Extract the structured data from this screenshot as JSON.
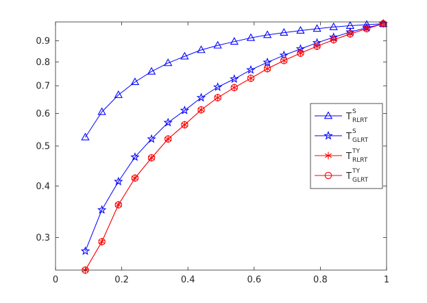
{
  "chart_data": {
    "type": "line",
    "title": "",
    "xlabel": "",
    "ylabel": "",
    "xlim": [
      0,
      1
    ],
    "ylim": [
      0.25,
      1.0
    ],
    "yscale": "log",
    "grid": false,
    "legend_position": "right-middle",
    "xticks": [
      "0",
      "0.2",
      "0.4",
      "0.6",
      "0.8",
      "1"
    ],
    "xtick_values": [
      0,
      0.2,
      0.4,
      0.6,
      0.8,
      1.0
    ],
    "yticks": [
      "0.3",
      "0.4",
      "0.5",
      "0.6",
      "0.7",
      "0.8",
      "0.9"
    ],
    "ytick_values": [
      0.3,
      0.4,
      0.5,
      0.6,
      0.7,
      0.8,
      0.9
    ],
    "x": [
      0.09,
      0.14,
      0.19,
      0.24,
      0.29,
      0.34,
      0.39,
      0.44,
      0.49,
      0.54,
      0.59,
      0.64,
      0.69,
      0.74,
      0.79,
      0.84,
      0.89,
      0.94,
      0.99
    ],
    "series": [
      {
        "name": "T",
        "sup": "S",
        "sub": "RLRT",
        "color": "#0000ff",
        "marker": "triangle",
        "values": [
          0.525,
          0.605,
          0.665,
          0.715,
          0.758,
          0.795,
          0.825,
          0.855,
          0.877,
          0.896,
          0.915,
          0.93,
          0.942,
          0.953,
          0.963,
          0.972,
          0.979,
          0.985,
          0.99
        ]
      },
      {
        "name": "T",
        "sup": "S",
        "sub": "GLRT",
        "color": "#0000ff",
        "marker": "star",
        "values": [
          0.278,
          0.35,
          0.41,
          0.47,
          0.52,
          0.57,
          0.61,
          0.655,
          0.695,
          0.727,
          0.765,
          0.798,
          0.83,
          0.86,
          0.89,
          0.918,
          0.945,
          0.968,
          0.99
        ]
      },
      {
        "name": "T",
        "sup": "TY",
        "sub": "RLRT",
        "color": "#ff0000",
        "marker": "asterisk",
        "values": [
          0.25,
          0.293,
          0.36,
          0.418,
          0.468,
          0.52,
          0.563,
          0.612,
          0.655,
          0.693,
          0.73,
          0.77,
          0.806,
          0.84,
          0.873,
          0.905,
          0.935,
          0.963,
          0.99
        ]
      },
      {
        "name": "T",
        "sup": "TY",
        "sub": "GLRT",
        "color": "#ff0000",
        "marker": "circle",
        "values": [
          0.25,
          0.293,
          0.36,
          0.418,
          0.468,
          0.52,
          0.563,
          0.612,
          0.655,
          0.693,
          0.73,
          0.77,
          0.806,
          0.84,
          0.873,
          0.905,
          0.935,
          0.963,
          0.99
        ]
      }
    ]
  }
}
